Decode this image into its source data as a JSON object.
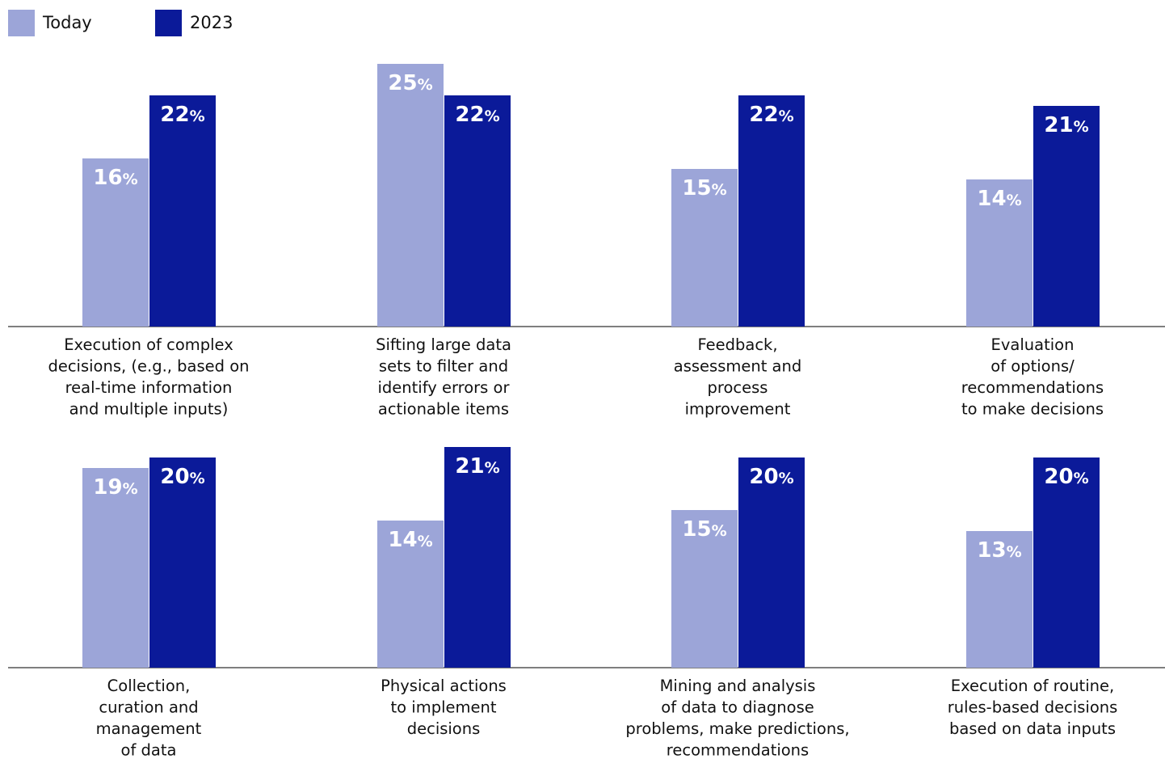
{
  "legend": [
    {
      "label": "Today",
      "color": "#9ca5d8"
    },
    {
      "label": "2023",
      "color": "#0b1a99"
    }
  ],
  "chart_data": {
    "type": "bar",
    "value_suffix": "%",
    "series": [
      {
        "name": "Today",
        "color": "#9ca5d8",
        "values": [
          16,
          25,
          15,
          14,
          19,
          14,
          15,
          13
        ]
      },
      {
        "name": "2023",
        "color": "#0b1a99",
        "values": [
          22,
          22,
          22,
          21,
          20,
          21,
          20,
          20
        ]
      }
    ],
    "categories": [
      {
        "lines": [
          "Execution of complex",
          "decisions, (e.g., based on",
          "real-time information",
          "and multiple inputs)"
        ]
      },
      {
        "lines": [
          "Sifting large data",
          "sets to filter and",
          "identify errors or",
          "actionable items"
        ]
      },
      {
        "lines": [
          "Feedback,",
          "assessment and",
          "process",
          "improvement"
        ]
      },
      {
        "lines": [
          "Evaluation",
          "of options/",
          "recommendations",
          "to make decisions"
        ]
      },
      {
        "lines": [
          "Collection,",
          "curation and",
          "management",
          "of data"
        ]
      },
      {
        "lines": [
          "Physical actions",
          "to implement",
          "decisions"
        ]
      },
      {
        "lines": [
          "Mining and analysis",
          "of data to diagnose",
          "problems, make predictions,",
          "recommendations"
        ]
      },
      {
        "lines": [
          "Execution of routine,",
          "rules-based decisions",
          "based on data inputs"
        ]
      }
    ],
    "ylim": [
      0,
      25
    ],
    "grid": false,
    "legend_position": "top-left"
  }
}
